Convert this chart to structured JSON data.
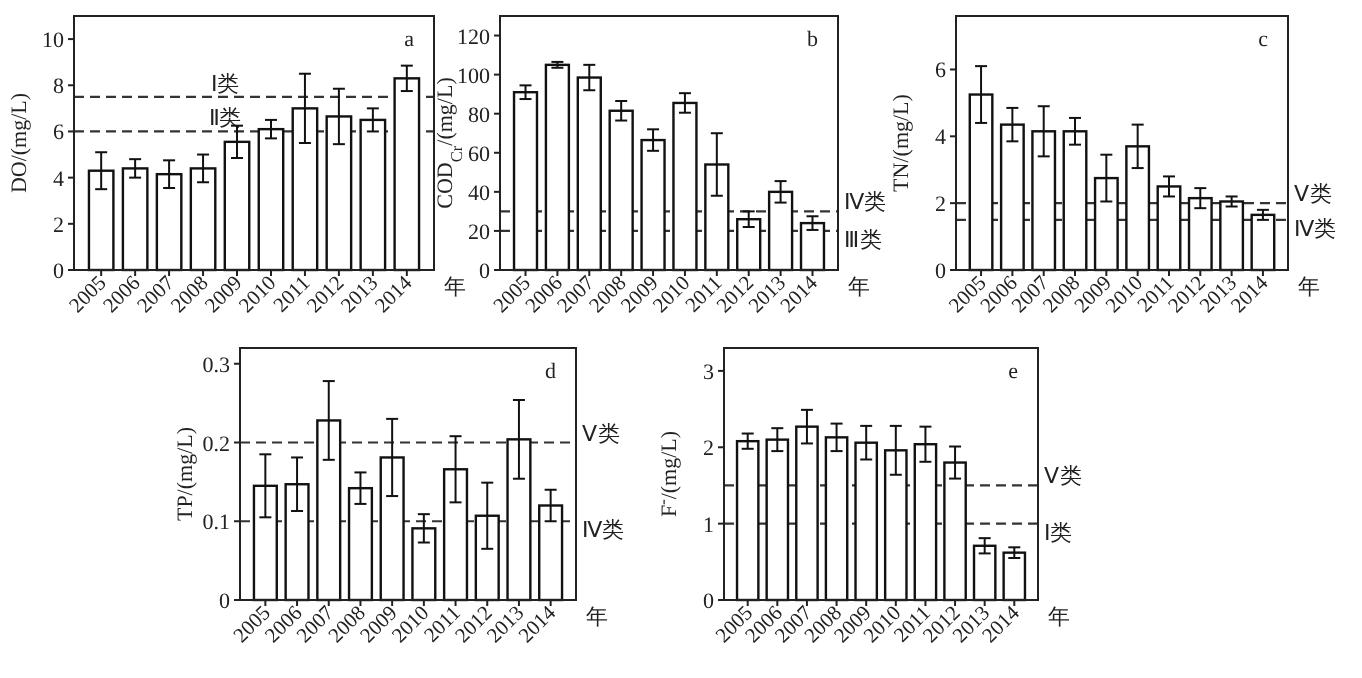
{
  "chart_data": [
    {
      "type": "bar",
      "title": "a",
      "ylabel": "DO/(mg/L)",
      "xlabel": "年",
      "categories": [
        "2005",
        "2006",
        "2007",
        "2008",
        "2009",
        "2010",
        "2011",
        "2012",
        "2013",
        "2014"
      ],
      "color": "#ffffff",
      "values": [
        4.3,
        4.4,
        4.15,
        4.4,
        5.55,
        6.1,
        7.0,
        6.65,
        6.5,
        8.3
      ],
      "errors": [
        0.8,
        0.4,
        0.6,
        0.6,
        0.7,
        0.4,
        1.5,
        1.2,
        0.5,
        0.55
      ],
      "ylim": [
        0,
        11
      ],
      "yticks": [
        0,
        2,
        4,
        6,
        8,
        10
      ],
      "ref_lines": [
        {
          "axis": "y",
          "value": 7.5,
          "label": "Ⅰ类",
          "line_style": "dashed"
        },
        {
          "axis": "y",
          "value": 6,
          "label": "Ⅱ类",
          "line_style": "dashed"
        }
      ]
    },
    {
      "type": "bar",
      "title": "b",
      "ylabel": "COD$_{Cr}$/(mg/L)",
      "xlabel": "年",
      "categories": [
        "2005",
        "2006",
        "2007",
        "2008",
        "2009",
        "2010",
        "2011",
        "2012",
        "2013",
        "2014"
      ],
      "color": "#ffffff",
      "values": [
        91,
        105,
        98.5,
        81.5,
        66.5,
        85.5,
        54,
        26,
        40,
        24
      ],
      "errors": [
        3.5,
        1.5,
        6.5,
        5,
        5.5,
        5,
        16,
        4,
        5.5,
        3.5
      ],
      "ylim": [
        0,
        130
      ],
      "yticks": [
        0,
        20,
        40,
        60,
        80,
        100,
        120
      ],
      "ref_lines": [
        {
          "axis": "y",
          "value": 30,
          "label": "Ⅳ类",
          "line_style": "dashed"
        },
        {
          "axis": "y",
          "value": 20,
          "label": "Ⅲ类",
          "line_style": "dashed"
        }
      ]
    },
    {
      "type": "bar",
      "title": "c",
      "ylabel": "TN/(mg/L)",
      "xlabel": "年",
      "categories": [
        "2005",
        "2006",
        "2007",
        "2008",
        "2009",
        "2010",
        "2011",
        "2012",
        "2013",
        "2014"
      ],
      "color": "#ffffff",
      "values": [
        5.25,
        4.35,
        4.15,
        4.15,
        2.75,
        3.7,
        2.5,
        2.15,
        2.05,
        1.65
      ],
      "errors": [
        0.85,
        0.5,
        0.75,
        0.4,
        0.7,
        0.65,
        0.3,
        0.3,
        0.15,
        0.15
      ],
      "ylim": [
        0,
        7.6
      ],
      "yticks": [
        0,
        2,
        4,
        6
      ],
      "ref_lines": [
        {
          "axis": "y",
          "value": 2,
          "label": "Ⅴ类",
          "line_style": "dashed"
        },
        {
          "axis": "y",
          "value": 1.5,
          "label": "Ⅳ类",
          "line_style": "dashed"
        }
      ]
    },
    {
      "type": "bar",
      "title": "d",
      "ylabel": "TP/(mg/L)",
      "xlabel": "年",
      "categories": [
        "2005",
        "2006",
        "2007",
        "2008",
        "2009",
        "2010",
        "2011",
        "2012",
        "2013",
        "2014"
      ],
      "color": "#ffffff",
      "values": [
        0.145,
        0.147,
        0.228,
        0.142,
        0.181,
        0.091,
        0.166,
        0.107,
        0.204,
        0.12
      ],
      "errors": [
        0.04,
        0.034,
        0.05,
        0.02,
        0.049,
        0.018,
        0.042,
        0.042,
        0.05,
        0.02
      ],
      "ylim": [
        0,
        0.32
      ],
      "yticks": [
        {
          "value": 0,
          "label": "0"
        },
        {
          "value": 0.1,
          "label": "0.1"
        },
        {
          "value": 0.2,
          "label": "0.2"
        },
        {
          "value": 0.3,
          "label": "0.3"
        }
      ],
      "ref_lines": [
        {
          "axis": "y",
          "value": 0.2,
          "label": "Ⅴ类",
          "line_style": "dashed"
        },
        {
          "axis": "y",
          "value": 0.1,
          "label": "Ⅳ类",
          "line_style": "dashed"
        }
      ]
    },
    {
      "type": "bar",
      "title": "e",
      "ylabel": "F$^{-}$/(mg/L)",
      "xlabel": "年",
      "categories": [
        "2005",
        "2006",
        "2007",
        "2008",
        "2009",
        "2010",
        "2011",
        "2012",
        "2013",
        "2014"
      ],
      "color": "#ffffff",
      "values": [
        2.08,
        2.1,
        2.27,
        2.13,
        2.06,
        1.96,
        2.04,
        1.8,
        0.71,
        0.62
      ],
      "errors": [
        0.1,
        0.15,
        0.22,
        0.18,
        0.22,
        0.32,
        0.23,
        0.21,
        0.1,
        0.07
      ],
      "ylim": [
        0,
        3.3
      ],
      "yticks": [
        0,
        1,
        2,
        3
      ],
      "ref_lines": [
        {
          "axis": "y",
          "value": 1.5,
          "label": "Ⅴ类",
          "line_style": "dashed"
        },
        {
          "axis": "y",
          "value": 1,
          "label": "Ⅰ类",
          "line_style": "dashed"
        }
      ]
    }
  ]
}
